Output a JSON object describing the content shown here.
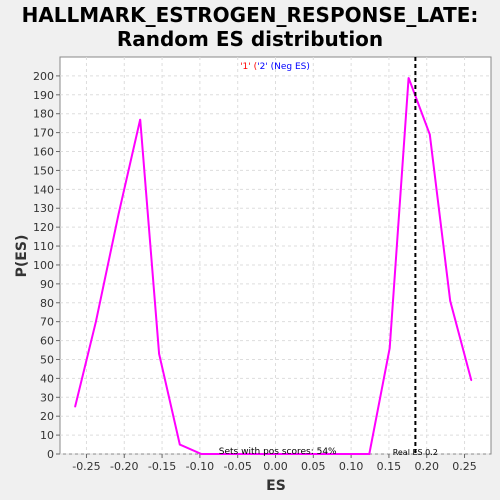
{
  "chart_data": {
    "type": "line",
    "title_lines": [
      "HALLMARK_ESTROGEN_RESPONSE_LATE:",
      "Random ES distribution"
    ],
    "xlabel": "ES",
    "ylabel": "P(ES)",
    "xlim": [
      -0.285,
      0.285
    ],
    "ylim": [
      0,
      210
    ],
    "x_ticks": [
      -0.25,
      -0.2,
      -0.15,
      -0.1,
      -0.05,
      0.0,
      0.05,
      0.1,
      0.15,
      0.2,
      0.25
    ],
    "x_tick_labels": [
      "-0.25",
      "-0.20",
      "-0.15",
      "-0.10",
      "-0.05",
      "0.00",
      "0.05",
      "0.10",
      "0.15",
      "0.20",
      "0.25"
    ],
    "y_ticks": [
      0,
      10,
      20,
      30,
      40,
      50,
      60,
      70,
      80,
      90,
      100,
      110,
      120,
      130,
      140,
      150,
      160,
      170,
      180,
      190,
      200
    ],
    "grid": true,
    "legend": {
      "placement": "top-center",
      "entries": [
        {
          "text": "'1' (",
          "color": "#ff0000"
        },
        {
          "text": "'2' (Neg ES)",
          "color": "#0000ff"
        }
      ]
    },
    "series": [
      {
        "color": "#ff00ff",
        "x": [
          -0.265,
          -0.2375,
          -0.2075,
          -0.179,
          -0.154,
          -0.1265,
          -0.098,
          -0.072,
          -0.044,
          -0.016,
          0.012,
          0.04,
          0.068,
          0.096,
          0.124,
          0.151,
          0.176,
          0.204,
          0.231,
          0.259
        ],
        "y": [
          25,
          70,
          127,
          177,
          53,
          5,
          0,
          0,
          0,
          0,
          0,
          0,
          0,
          0,
          0,
          56,
          199,
          169,
          81,
          39
        ]
      }
    ],
    "real_es": {
      "x": 0.185,
      "color": "#000000",
      "style": "dashed"
    },
    "annotations": [
      {
        "text": "Sets with pos scores: 54%",
        "x": -0.075
      },
      {
        "text": "Real ES 0.2",
        "x": 0.155
      }
    ]
  }
}
